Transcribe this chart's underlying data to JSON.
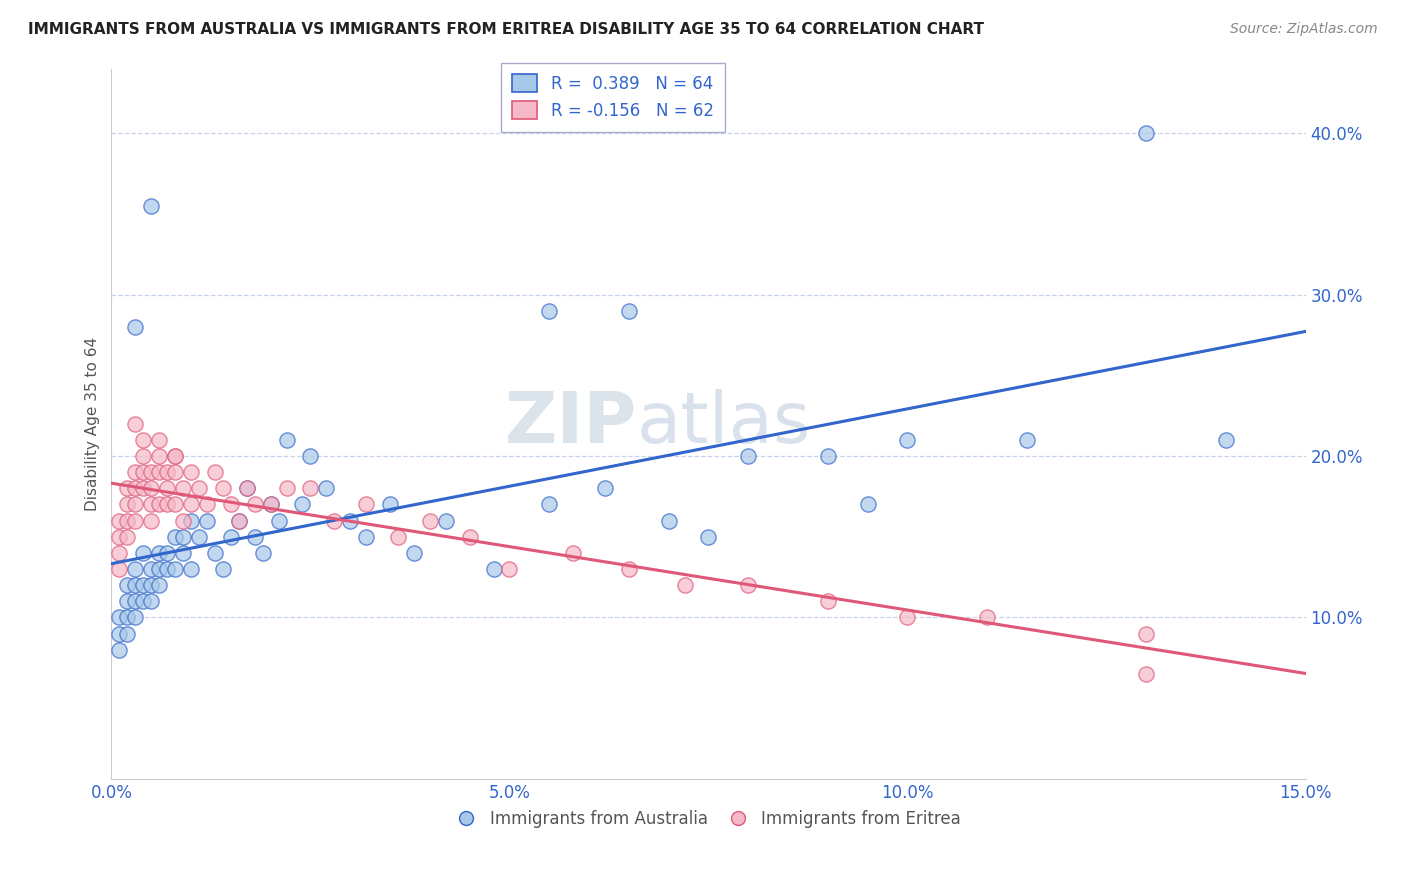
{
  "title": "IMMIGRANTS FROM AUSTRALIA VS IMMIGRANTS FROM ERITREA DISABILITY AGE 35 TO 64 CORRELATION CHART",
  "source": "Source: ZipAtlas.com",
  "ylabel": "Disability Age 35 to 64",
  "x_min": 0.0,
  "x_max": 0.15,
  "y_min": 0.0,
  "y_max": 0.44,
  "x_ticks": [
    0.0,
    0.05,
    0.1,
    0.15
  ],
  "y_ticks": [
    0.1,
    0.2,
    0.3,
    0.4
  ],
  "r_australia": 0.389,
  "n_australia": 64,
  "r_eritrea": -0.156,
  "n_eritrea": 62,
  "color_australia": "#a8c8e8",
  "color_eritrea": "#f4b8c8",
  "line_color_australia": "#3366cc",
  "line_color_eritrea": "#e05878",
  "background_color": "#ffffff",
  "grid_color": "#c8d4e8",
  "watermark_zip": "ZIP",
  "watermark_atlas": "atlas",
  "aus_x": [
    0.001,
    0.001,
    0.001,
    0.002,
    0.002,
    0.002,
    0.002,
    0.003,
    0.003,
    0.003,
    0.003,
    0.004,
    0.004,
    0.004,
    0.005,
    0.005,
    0.005,
    0.006,
    0.006,
    0.006,
    0.007,
    0.007,
    0.008,
    0.008,
    0.009,
    0.009,
    0.01,
    0.01,
    0.011,
    0.012,
    0.013,
    0.014,
    0.015,
    0.016,
    0.017,
    0.018,
    0.019,
    0.02,
    0.021,
    0.022,
    0.024,
    0.025,
    0.027,
    0.03,
    0.032,
    0.035,
    0.038,
    0.042,
    0.048,
    0.055,
    0.062,
    0.07,
    0.075,
    0.09,
    0.095,
    0.1,
    0.055,
    0.065,
    0.08,
    0.115,
    0.13,
    0.14,
    0.005,
    0.003
  ],
  "aus_y": [
    0.1,
    0.09,
    0.08,
    0.12,
    0.11,
    0.1,
    0.09,
    0.13,
    0.12,
    0.11,
    0.1,
    0.14,
    0.12,
    0.11,
    0.13,
    0.12,
    0.11,
    0.14,
    0.13,
    0.12,
    0.14,
    0.13,
    0.15,
    0.13,
    0.15,
    0.14,
    0.16,
    0.13,
    0.15,
    0.16,
    0.14,
    0.13,
    0.15,
    0.16,
    0.18,
    0.15,
    0.14,
    0.17,
    0.16,
    0.21,
    0.17,
    0.2,
    0.18,
    0.16,
    0.15,
    0.17,
    0.14,
    0.16,
    0.13,
    0.17,
    0.18,
    0.16,
    0.15,
    0.2,
    0.17,
    0.21,
    0.29,
    0.29,
    0.2,
    0.21,
    0.4,
    0.21,
    0.355,
    0.28
  ],
  "eri_x": [
    0.001,
    0.001,
    0.001,
    0.001,
    0.002,
    0.002,
    0.002,
    0.002,
    0.003,
    0.003,
    0.003,
    0.003,
    0.004,
    0.004,
    0.004,
    0.005,
    0.005,
    0.005,
    0.005,
    0.006,
    0.006,
    0.006,
    0.007,
    0.007,
    0.007,
    0.008,
    0.008,
    0.008,
    0.009,
    0.009,
    0.01,
    0.01,
    0.011,
    0.012,
    0.013,
    0.014,
    0.015,
    0.016,
    0.017,
    0.018,
    0.02,
    0.022,
    0.025,
    0.028,
    0.032,
    0.036,
    0.04,
    0.045,
    0.05,
    0.058,
    0.065,
    0.072,
    0.08,
    0.09,
    0.1,
    0.11,
    0.13,
    0.003,
    0.004,
    0.006,
    0.008,
    0.13
  ],
  "eri_y": [
    0.16,
    0.15,
    0.14,
    0.13,
    0.18,
    0.17,
    0.16,
    0.15,
    0.19,
    0.18,
    0.17,
    0.16,
    0.2,
    0.19,
    0.18,
    0.19,
    0.18,
    0.17,
    0.16,
    0.2,
    0.19,
    0.17,
    0.19,
    0.18,
    0.17,
    0.2,
    0.19,
    0.17,
    0.18,
    0.16,
    0.19,
    0.17,
    0.18,
    0.17,
    0.19,
    0.18,
    0.17,
    0.16,
    0.18,
    0.17,
    0.17,
    0.18,
    0.18,
    0.16,
    0.17,
    0.15,
    0.16,
    0.15,
    0.13,
    0.14,
    0.13,
    0.12,
    0.12,
    0.11,
    0.1,
    0.1,
    0.09,
    0.22,
    0.21,
    0.21,
    0.2,
    0.065
  ]
}
